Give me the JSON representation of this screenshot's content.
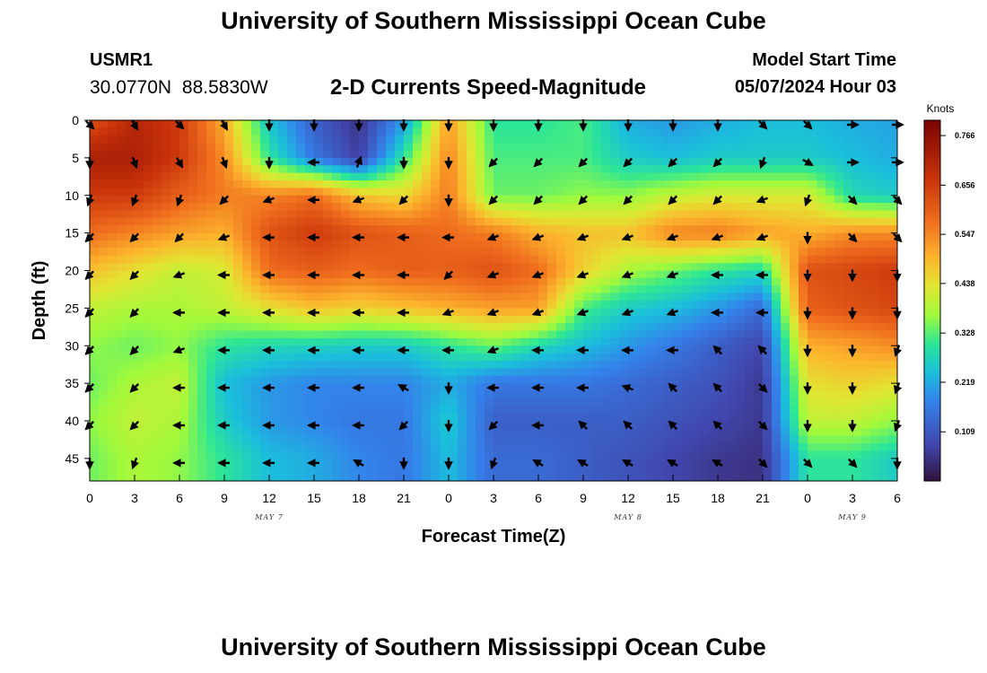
{
  "header": {
    "title": "University of Southern Mississippi Ocean Cube",
    "footer_title": "University of Southern Mississippi Ocean Cube",
    "station_id": "USMR1",
    "station_coords": "30.0770N 88.5830W",
    "model_start_label": "Model Start Time",
    "model_start_value": "05/07/2024 Hour 03"
  },
  "chart_data": {
    "type": "heatmap",
    "title": "2-D Currents Speed-Magnitude",
    "xlabel": "Forecast Time(Z)",
    "ylabel": "Depth (ft)",
    "x_hours_since_may7_00z": [
      0,
      3,
      6,
      9,
      12,
      15,
      18,
      21,
      24,
      27,
      30,
      33,
      36,
      39,
      42,
      45,
      48,
      51,
      54
    ],
    "x_tick_labels": [
      "0",
      "3",
      "6",
      "9",
      "12",
      "15",
      "18",
      "21",
      "0",
      "3",
      "6",
      "9",
      "12",
      "15",
      "18",
      "21",
      "0",
      "3",
      "6"
    ],
    "day_labels": [
      {
        "hour": 12,
        "label": "MAY 7"
      },
      {
        "hour": 36,
        "label": "MAY 8"
      },
      {
        "hour": 51,
        "label": "MAY 9"
      }
    ],
    "depths_ft": [
      0,
      5,
      10,
      15,
      20,
      25,
      30,
      35,
      40,
      45
    ],
    "y_tick_labels": [
      "0",
      "5",
      "10",
      "15",
      "20",
      "25",
      "30",
      "35",
      "40",
      "45"
    ],
    "ylim": [
      0,
      48
    ],
    "xlim": [
      0,
      54
    ],
    "colorbar": {
      "label": "Knots",
      "ticks": [
        "0.766",
        "0.656",
        "0.547",
        "0.438",
        "0.328",
        "0.219",
        "0.109"
      ],
      "range": [
        0,
        0.8
      ]
    },
    "speed_knots": [
      [
        0.62,
        0.7,
        0.66,
        0.5,
        0.25,
        0.12,
        0.05,
        0.2,
        0.52,
        0.3,
        0.3,
        0.32,
        0.22,
        0.2,
        0.22,
        0.24,
        0.24,
        0.22,
        0.21
      ],
      [
        0.72,
        0.72,
        0.66,
        0.54,
        0.3,
        0.16,
        0.07,
        0.3,
        0.55,
        0.32,
        0.32,
        0.32,
        0.26,
        0.24,
        0.26,
        0.26,
        0.26,
        0.24,
        0.22
      ],
      [
        0.66,
        0.66,
        0.6,
        0.56,
        0.55,
        0.58,
        0.48,
        0.45,
        0.56,
        0.34,
        0.34,
        0.36,
        0.36,
        0.4,
        0.42,
        0.42,
        0.42,
        0.28,
        0.26
      ],
      [
        0.58,
        0.55,
        0.52,
        0.5,
        0.62,
        0.66,
        0.62,
        0.6,
        0.58,
        0.56,
        0.5,
        0.48,
        0.48,
        0.55,
        0.56,
        0.52,
        0.5,
        0.54,
        0.54
      ],
      [
        0.48,
        0.44,
        0.4,
        0.42,
        0.58,
        0.6,
        0.58,
        0.6,
        0.6,
        0.62,
        0.58,
        0.46,
        0.38,
        0.34,
        0.3,
        0.28,
        0.62,
        0.64,
        0.66
      ],
      [
        0.4,
        0.38,
        0.38,
        0.4,
        0.44,
        0.48,
        0.46,
        0.48,
        0.5,
        0.52,
        0.52,
        0.32,
        0.26,
        0.24,
        0.2,
        0.14,
        0.6,
        0.62,
        0.64
      ],
      [
        0.36,
        0.34,
        0.36,
        0.3,
        0.28,
        0.27,
        0.26,
        0.26,
        0.3,
        0.34,
        0.28,
        0.24,
        0.2,
        0.16,
        0.12,
        0.08,
        0.5,
        0.52,
        0.54
      ],
      [
        0.34,
        0.38,
        0.4,
        0.24,
        0.2,
        0.18,
        0.18,
        0.18,
        0.22,
        0.16,
        0.16,
        0.16,
        0.14,
        0.12,
        0.1,
        0.06,
        0.44,
        0.46,
        0.44
      ],
      [
        0.36,
        0.4,
        0.38,
        0.26,
        0.2,
        0.18,
        0.16,
        0.16,
        0.26,
        0.12,
        0.12,
        0.12,
        0.12,
        0.1,
        0.08,
        0.06,
        0.4,
        0.4,
        0.36
      ],
      [
        0.34,
        0.38,
        0.36,
        0.3,
        0.24,
        0.22,
        0.18,
        0.16,
        0.24,
        0.14,
        0.14,
        0.12,
        0.1,
        0.08,
        0.06,
        0.05,
        0.3,
        0.3,
        0.26
      ]
    ],
    "direction_deg": [
      [
        135,
        150,
        135,
        150,
        180,
        180,
        180,
        180,
        180,
        180,
        180,
        180,
        180,
        180,
        180,
        135,
        135,
        90,
        90
      ],
      [
        180,
        160,
        150,
        160,
        180,
        270,
        20,
        180,
        180,
        225,
        225,
        225,
        225,
        225,
        225,
        200,
        120,
        90,
        90
      ],
      [
        200,
        200,
        200,
        225,
        250,
        270,
        250,
        225,
        180,
        225,
        225,
        225,
        225,
        225,
        225,
        250,
        200,
        135,
        135
      ],
      [
        225,
        225,
        225,
        250,
        270,
        270,
        270,
        270,
        270,
        250,
        250,
        250,
        250,
        250,
        250,
        250,
        180,
        135,
        135
      ],
      [
        225,
        225,
        250,
        270,
        270,
        270,
        270,
        270,
        225,
        250,
        250,
        250,
        250,
        250,
        270,
        270,
        180,
        180,
        180
      ],
      [
        225,
        225,
        270,
        270,
        270,
        270,
        270,
        270,
        250,
        250,
        250,
        250,
        250,
        250,
        270,
        270,
        180,
        180,
        180
      ],
      [
        225,
        225,
        250,
        270,
        270,
        270,
        270,
        270,
        270,
        250,
        270,
        270,
        270,
        270,
        315,
        315,
        180,
        180,
        200
      ],
      [
        225,
        225,
        270,
        270,
        270,
        270,
        270,
        300,
        180,
        270,
        270,
        270,
        290,
        315,
        315,
        135,
        180,
        180,
        200
      ],
      [
        225,
        225,
        270,
        270,
        270,
        270,
        270,
        225,
        180,
        225,
        270,
        315,
        315,
        315,
        315,
        135,
        180,
        180,
        200
      ],
      [
        180,
        200,
        270,
        270,
        270,
        270,
        300,
        180,
        180,
        200,
        300,
        300,
        300,
        300,
        300,
        135,
        135,
        135,
        180
      ]
    ]
  }
}
